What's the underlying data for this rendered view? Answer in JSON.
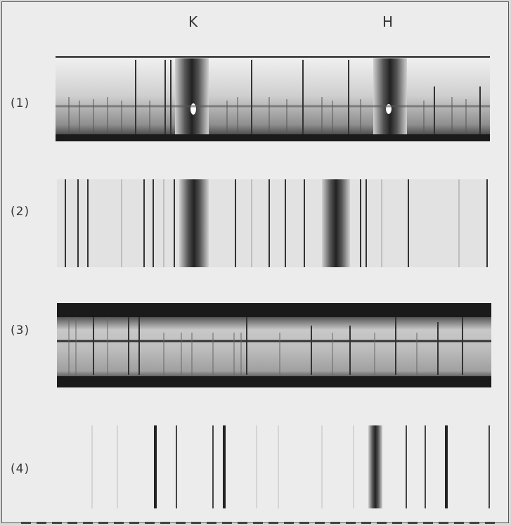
{
  "labels": {
    "line_k": "K",
    "line_h": "H",
    "spectrum_1": "(1)",
    "spectrum_2": "(2)",
    "spectrum_3": "(3)",
    "spectrum_4": "(4)"
  },
  "colors": {
    "paper": "#ececec",
    "film_dark": "#1a1a1a",
    "film_mid": "#8a8a8a",
    "line_dark": "#222222"
  }
}
